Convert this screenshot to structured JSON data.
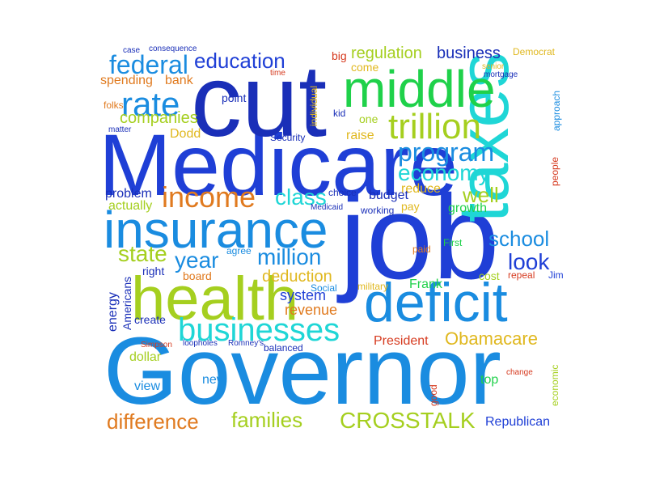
{
  "colors": {
    "royal_blue": "#1f3fd6",
    "sky_blue": "#1a8ce0",
    "cyan": "#1fd6d6",
    "lime": "#a5cf1f",
    "green": "#1fd14a",
    "orange": "#e07a1f",
    "red": "#d63a1f",
    "gold": "#e0b81f",
    "navy": "#1a2fb8"
  },
  "words": [
    "Governor",
    "Medicare",
    "job",
    "cut",
    "taxes",
    "insurance",
    "middle",
    "health",
    "deficit",
    "businesses",
    "trillion",
    "program",
    "economy",
    "income",
    "rate",
    "federal",
    "education",
    "class",
    "school",
    "CROSSTALK",
    "difference",
    "families",
    "million",
    "Republican",
    "Obamacare",
    "well",
    "look",
    "year",
    "state",
    "regulation",
    "business",
    "companies",
    "revenue",
    "deduction",
    "President",
    "actually",
    "problem",
    "spending",
    "bank",
    "Dodd",
    "Frank",
    "system",
    "budget",
    "reduce",
    "growth",
    "energy",
    "Americans",
    "new",
    "view",
    "dollar",
    "create",
    "board",
    "right",
    "point",
    "raise",
    "one",
    "come",
    "big",
    "cost",
    "top",
    "pay",
    "working",
    "paid",
    "Democrat",
    "folks",
    "First",
    "Jim",
    "good",
    "economic",
    "people",
    "approach",
    "agree",
    "Social",
    "Security",
    "military",
    "balanced",
    "Romney's",
    "Simpson",
    "loopholes",
    "time",
    "kid",
    "choice",
    "individual",
    "Medicaid",
    "matter",
    "case",
    "consequence",
    "senior",
    "mortgage",
    "repeal",
    "change"
  ]
}
